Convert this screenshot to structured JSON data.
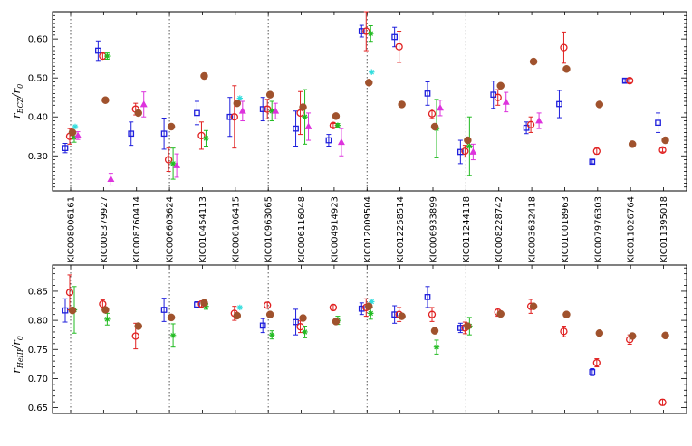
{
  "chart_data": {
    "type": "scatter",
    "stars": [
      "KIC008006161",
      "KIC008379927",
      "KIC008760414",
      "KIC006603624",
      "KIC010454113",
      "KIC006106415",
      "KIC010963065",
      "KIC006116048",
      "KIC004914923",
      "KIC012009504",
      "KIC012258514",
      "KIC006933899",
      "KIC011244118",
      "KIC008228742",
      "KIC003632418",
      "KIC010018963",
      "KIC007976303",
      "KIC011026764",
      "KIC011395018"
    ],
    "dotted_marks": [
      0,
      3,
      6,
      9,
      12
    ],
    "colors": {
      "blue": "#1f1fdc",
      "red": "#e02020",
      "green": "#22bb22",
      "magenta": "#dd33dd",
      "cyan": "#33dddd",
      "brown": "#a0522d"
    },
    "panels": [
      {
        "id": "top",
        "ylabel_main": "r",
        "ylabel_sub": "BCZ",
        "ylabel_den": "/r",
        "ylabel_den_sub": "0",
        "ylim": [
          0.21,
          0.67
        ],
        "yticks": [
          "0.30",
          "0.40",
          "0.50",
          "0.60"
        ],
        "series": [
          {
            "marker": "square",
            "color": "blue",
            "points": [
              [
                0,
                0.32,
                0.012
              ],
              [
                1,
                0.57,
                0.025
              ],
              [
                2,
                0.357,
                0.03
              ],
              [
                3,
                0.357,
                0.04
              ],
              [
                4,
                0.41,
                0.03
              ],
              [
                5,
                0.4,
                0.05
              ],
              [
                6,
                0.42,
                0.03
              ],
              [
                7,
                0.37,
                0.045
              ],
              [
                8,
                0.34,
                0.015
              ],
              [
                9,
                0.62,
                0.015
              ],
              [
                10,
                0.605,
                0.025
              ],
              [
                11,
                0.46,
                0.03
              ],
              [
                12,
                0.31,
                0.03
              ],
              [
                13,
                0.457,
                0.035
              ],
              [
                14,
                0.372,
                0.015
              ],
              [
                15,
                0.433,
                0.035
              ],
              [
                16,
                0.285,
                0.005
              ],
              [
                17,
                0.493,
                0.005
              ],
              [
                18,
                0.385,
                0.025
              ]
            ]
          },
          {
            "marker": "circle",
            "color": "red",
            "points": [
              [
                0,
                0.35,
                0.02
              ],
              [
                1,
                0.556,
                0.008
              ],
              [
                2,
                0.42,
                0.015
              ],
              [
                3,
                0.29,
                0.03
              ],
              [
                4,
                0.352,
                0.035
              ],
              [
                5,
                0.4,
                0.08
              ],
              [
                6,
                0.42,
                0.025
              ],
              [
                7,
                0.41,
                0.055
              ],
              [
                8,
                0.378,
                0.005
              ],
              [
                9,
                0.62,
                0.05
              ],
              [
                10,
                0.58,
                0.04
              ],
              [
                11,
                0.408,
                0.012
              ],
              [
                12,
                0.312,
                0.015
              ],
              [
                13,
                0.45,
                0.02
              ],
              [
                14,
                0.38,
                0.02
              ],
              [
                15,
                0.578,
                0.04
              ],
              [
                16,
                0.312,
                0.008
              ],
              [
                17,
                0.493,
                0.005
              ],
              [
                18,
                0.315,
                0.005
              ]
            ]
          },
          {
            "marker": "star",
            "color": "green",
            "points": [
              [
                0,
                0.347,
                0.012
              ],
              [
                1,
                0.556,
                0.008
              ],
              [
                3,
                0.28,
                0.04
              ],
              [
                4,
                0.345,
                0.02
              ],
              [
                6,
                0.415,
                0.025
              ],
              [
                7,
                0.4,
                0.07
              ],
              [
                8,
                0.378,
                0.005
              ],
              [
                9,
                0.614,
                0.02
              ],
              [
                11,
                0.37,
                0.075
              ],
              [
                12,
                0.325,
                0.075
              ]
            ]
          },
          {
            "marker": "triangle",
            "color": "magenta",
            "points": [
              [
                0,
                0.352,
                0.01
              ],
              [
                1,
                0.24,
                0.015
              ],
              [
                2,
                0.432,
                0.032
              ],
              [
                3,
                0.275,
                0.03
              ],
              [
                5,
                0.415,
                0.025
              ],
              [
                6,
                0.415,
                0.02
              ],
              [
                7,
                0.375,
                0.035
              ],
              [
                8,
                0.335,
                0.035
              ],
              [
                11,
                0.423,
                0.02
              ],
              [
                12,
                0.31,
                0.02
              ],
              [
                13,
                0.438,
                0.025
              ],
              [
                14,
                0.39,
                0.02
              ]
            ]
          },
          {
            "marker": "star",
            "color": "cyan",
            "points": [
              [
                0,
                0.375,
                0
              ],
              [
                5,
                0.448,
                0
              ],
              [
                9,
                0.515,
                0
              ]
            ]
          },
          {
            "marker": "dot",
            "color": "brown",
            "points": [
              [
                0,
                0.36
              ],
              [
                1,
                0.443
              ],
              [
                2,
                0.41
              ],
              [
                3,
                0.375
              ],
              [
                4,
                0.505
              ],
              [
                5,
                0.435
              ],
              [
                6,
                0.457
              ],
              [
                7,
                0.425
              ],
              [
                8,
                0.402
              ],
              [
                9,
                0.488
              ],
              [
                10,
                0.432
              ],
              [
                11,
                0.375
              ],
              [
                12,
                0.34
              ],
              [
                13,
                0.48
              ],
              [
                14,
                0.542
              ],
              [
                15,
                0.523
              ],
              [
                16,
                0.432
              ],
              [
                17,
                0.33
              ],
              [
                18,
                0.34
              ]
            ]
          }
        ]
      },
      {
        "id": "bottom",
        "ylabel_main": "r",
        "ylabel_sub": "HeIII",
        "ylabel_den": "/r",
        "ylabel_den_sub": "0",
        "ylim": [
          0.64,
          0.895
        ],
        "yticks": [
          "0.65",
          "0.70",
          "0.75",
          "0.80",
          "0.85"
        ],
        "series": [
          {
            "marker": "square",
            "color": "blue",
            "points": [
              [
                0,
                0.817,
                0.02
              ],
              [
                3,
                0.818,
                0.02
              ],
              [
                4,
                0.827,
                0.005
              ],
              [
                6,
                0.791,
                0.012
              ],
              [
                7,
                0.797,
                0.022
              ],
              [
                9,
                0.82,
                0.01
              ],
              [
                10,
                0.81,
                0.015
              ],
              [
                11,
                0.84,
                0.018
              ],
              [
                12,
                0.787,
                0.008
              ],
              [
                16,
                0.711,
                0.006
              ]
            ]
          },
          {
            "marker": "circle",
            "color": "red",
            "points": [
              [
                0,
                0.848,
                0.03
              ],
              [
                1,
                0.828,
                0.007
              ],
              [
                2,
                0.773,
                0.022
              ],
              [
                4,
                0.828,
                0.005
              ],
              [
                5,
                0.812,
                0.012
              ],
              [
                6,
                0.826,
                0.005
              ],
              [
                7,
                0.789,
                0.01
              ],
              [
                8,
                0.822,
                0.005
              ],
              [
                9,
                0.822,
                0.015
              ],
              [
                10,
                0.81,
                0.012
              ],
              [
                11,
                0.81,
                0.012
              ],
              [
                12,
                0.787,
                0.01
              ],
              [
                13,
                0.814,
                0.007
              ],
              [
                14,
                0.824,
                0.012
              ],
              [
                15,
                0.781,
                0.009
              ],
              [
                16,
                0.727,
                0.007
              ],
              [
                17,
                0.767,
                0.008
              ],
              [
                18,
                0.659,
                0.005
              ]
            ]
          },
          {
            "marker": "star",
            "color": "green",
            "points": [
              [
                0,
                0.818,
                0.04
              ],
              [
                1,
                0.802,
                0.01
              ],
              [
                3,
                0.774,
                0.02
              ],
              [
                4,
                0.824,
                0.005
              ],
              [
                6,
                0.775,
                0.007
              ],
              [
                7,
                0.78,
                0.01
              ],
              [
                8,
                0.8,
                0.007
              ],
              [
                9,
                0.812,
                0.01
              ],
              [
                11,
                0.754,
                0.012
              ],
              [
                12,
                0.79,
                0.015
              ]
            ]
          },
          {
            "marker": "star",
            "color": "cyan",
            "points": [
              [
                5,
                0.822,
                0
              ],
              [
                9,
                0.832,
                0
              ]
            ]
          },
          {
            "marker": "dot",
            "color": "brown",
            "points": [
              [
                0,
                0.817
              ],
              [
                1,
                0.818
              ],
              [
                2,
                0.79
              ],
              [
                3,
                0.805
              ],
              [
                4,
                0.83
              ],
              [
                5,
                0.808
              ],
              [
                6,
                0.81
              ],
              [
                7,
                0.804
              ],
              [
                8,
                0.798
              ],
              [
                9,
                0.824
              ],
              [
                10,
                0.807
              ],
              [
                11,
                0.782
              ],
              [
                12,
                0.79
              ],
              [
                13,
                0.811
              ],
              [
                14,
                0.824
              ],
              [
                15,
                0.81
              ],
              [
                16,
                0.778
              ],
              [
                17,
                0.773
              ],
              [
                18,
                0.774
              ]
            ]
          }
        ]
      }
    ]
  }
}
